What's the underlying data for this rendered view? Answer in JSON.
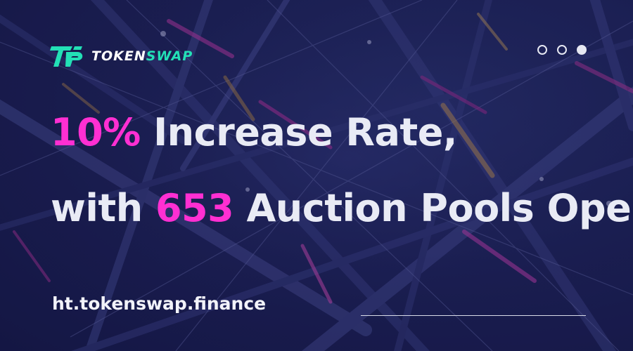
{
  "brand": {
    "name_part1": "TOKEN",
    "name_part2": "SWAP",
    "accent_color": "#23e0b6",
    "highlight_color": "#ff2fd2"
  },
  "carousel": {
    "slide_count": 3,
    "active_index": 2
  },
  "headline": {
    "line1_accent": "10%",
    "line1_rest": " Increase Rate,",
    "line2_lead": "with ",
    "line2_accent": "653",
    "line2_rest": " Auction Pools Open!"
  },
  "footer": {
    "url": "ht.tokenswap.finance"
  }
}
